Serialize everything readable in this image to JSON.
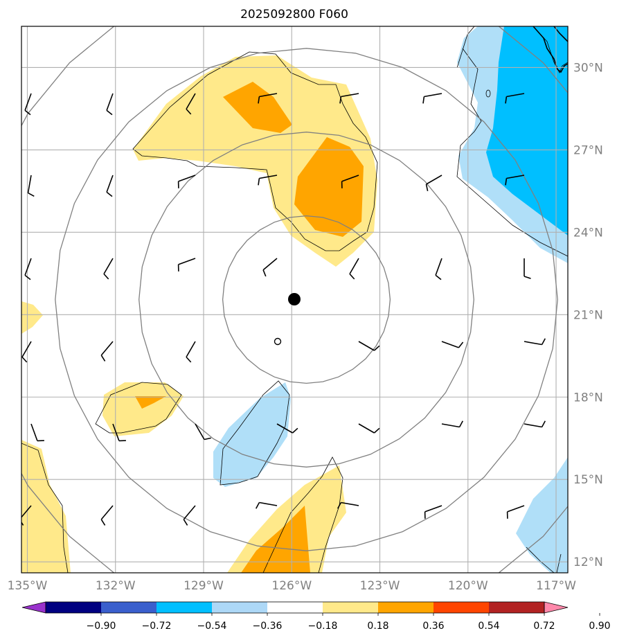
{
  "title": "2025092800 F060",
  "map": {
    "lon_range": [
      -135.2,
      -116.6
    ],
    "lat_range": [
      11.6,
      31.5
    ],
    "lon_ticks": [
      -135,
      -132,
      -129,
      -126,
      -123,
      -120,
      -117
    ],
    "lon_tick_labels": [
      "135°W",
      "132°W",
      "129°W",
      "126°W",
      "123°W",
      "120°W",
      "117°W"
    ],
    "lat_ticks": [
      12,
      15,
      18,
      21,
      24,
      27,
      30
    ],
    "lat_tick_labels": [
      "12°N",
      "15°N",
      "18°N",
      "21°N",
      "24°N",
      "27°N",
      "30°N"
    ],
    "grid": true,
    "center_marker": {
      "lon": -125.5,
      "lat": 21.55
    },
    "range_rings_deg": [
      2.85,
      5.7,
      8.55,
      11.4
    ]
  },
  "colorbar": {
    "ticks": [
      "−0.90",
      "−0.72",
      "−0.54",
      "−0.36",
      "−0.18",
      "0.18",
      "0.36",
      "0.54",
      "0.72",
      "0.90"
    ],
    "colors": [
      "#9932cc",
      "#000080",
      "#3a5fcd",
      "#00bfff",
      "#add8f7",
      "#ffffff",
      "#ffe98a",
      "#ffa500",
      "#ff4500",
      "#b22222",
      "#ff88aa"
    ],
    "extend": "both"
  },
  "colors": {
    "light_yellow": "#ffe98a",
    "orange": "#ffa500",
    "light_blue": "#b0dff8",
    "deep_sky_blue": "#00bfff",
    "grid": "#b0b0b0",
    "rings": "#808080"
  }
}
